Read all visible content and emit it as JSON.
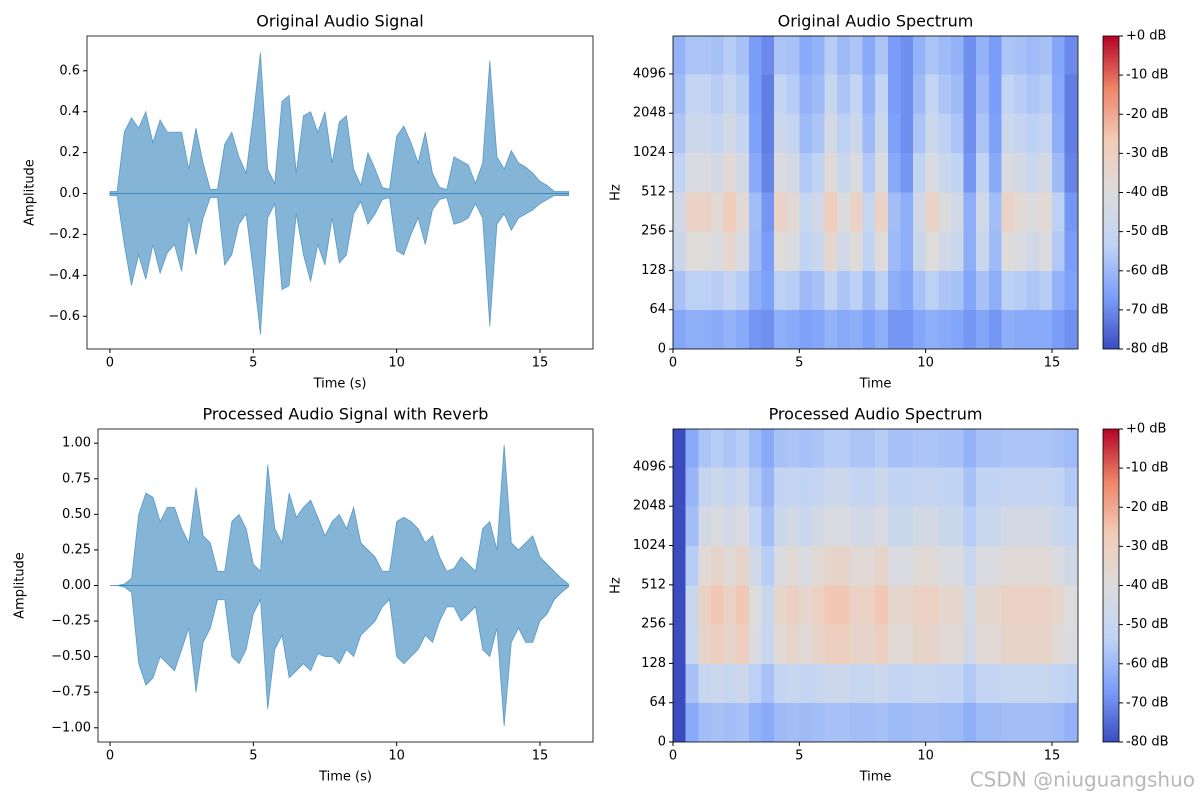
{
  "chart_data": [
    {
      "type": "area",
      "title": "Original Audio Signal",
      "xlabel": "Time (s)",
      "ylabel": "Amplitude",
      "color": "#1f77b4",
      "xlim": [
        -0.8,
        16.85
      ],
      "ylim": [
        -0.76,
        0.77
      ],
      "xticks": [
        0,
        5,
        10,
        15
      ],
      "yticks": [
        {
          "value": -0.6,
          "label": "−0.6"
        },
        {
          "value": -0.4,
          "label": "−0.4"
        },
        {
          "value": -0.2,
          "label": "−0.2"
        },
        {
          "value": 0,
          "label": "0.0"
        },
        0.2,
        0.4,
        0.6
      ],
      "x": [
        0,
        0.25,
        0.5,
        0.75,
        1,
        1.25,
        1.5,
        1.75,
        2,
        2.25,
        2.5,
        2.75,
        3,
        3.25,
        3.5,
        3.75,
        4,
        4.25,
        4.5,
        4.75,
        5,
        5.25,
        5.5,
        5.75,
        6,
        6.25,
        6.5,
        6.75,
        7,
        7.25,
        7.5,
        7.75,
        8,
        8.25,
        8.5,
        8.75,
        9,
        9.25,
        9.5,
        9.75,
        10,
        10.25,
        10.5,
        10.75,
        11,
        11.25,
        11.5,
        11.75,
        12,
        12.25,
        12.5,
        12.75,
        13,
        13.25,
        13.5,
        13.75,
        14,
        14.25,
        14.5,
        14.75,
        15,
        15.25,
        15.5,
        15.75,
        16
      ],
      "upper": [
        0.01,
        0.01,
        0.3,
        0.37,
        0.32,
        0.4,
        0.25,
        0.36,
        0.3,
        0.3,
        0.3,
        0.12,
        0.32,
        0.15,
        0.02,
        0.02,
        0.24,
        0.3,
        0.18,
        0.1,
        0.38,
        0.69,
        0.12,
        0.05,
        0.45,
        0.48,
        0.1,
        0.38,
        0.4,
        0.3,
        0.4,
        0.15,
        0.35,
        0.38,
        0.12,
        0.04,
        0.2,
        0.12,
        0.03,
        0.02,
        0.28,
        0.33,
        0.25,
        0.15,
        0.3,
        0.1,
        0.03,
        0.02,
        0.18,
        0.16,
        0.14,
        0.05,
        0.15,
        0.65,
        0.18,
        0.12,
        0.21,
        0.15,
        0.13,
        0.1,
        0.06,
        0.04,
        0.01,
        0.01,
        0.01
      ],
      "lower": [
        -0.01,
        -0.01,
        -0.25,
        -0.45,
        -0.3,
        -0.42,
        -0.25,
        -0.39,
        -0.29,
        -0.25,
        -0.38,
        -0.12,
        -0.3,
        -0.12,
        -0.02,
        -0.02,
        -0.35,
        -0.3,
        -0.15,
        -0.1,
        -0.38,
        -0.69,
        -0.12,
        -0.05,
        -0.47,
        -0.45,
        -0.1,
        -0.3,
        -0.43,
        -0.25,
        -0.35,
        -0.12,
        -0.34,
        -0.3,
        -0.1,
        -0.04,
        -0.15,
        -0.1,
        -0.03,
        -0.02,
        -0.28,
        -0.3,
        -0.2,
        -0.12,
        -0.25,
        -0.08,
        -0.03,
        -0.02,
        -0.15,
        -0.14,
        -0.12,
        -0.05,
        -0.12,
        -0.65,
        -0.15,
        -0.1,
        -0.18,
        -0.12,
        -0.1,
        -0.08,
        -0.05,
        -0.03,
        -0.01,
        -0.01,
        -0.01
      ]
    },
    {
      "type": "heatmap",
      "title": "Original Audio Spectrum",
      "xlabel": "Time",
      "ylabel": "Hz",
      "xlim": [
        0,
        16.03
      ],
      "ylim": [
        0,
        8000
      ],
      "yscale": "symlog",
      "linthresh": 64,
      "xticks": [
        0,
        5,
        10,
        15
      ],
      "yticks": [
        0,
        64,
        128,
        256,
        512,
        1024,
        2048,
        4096
      ],
      "x_edges": [
        0,
        0.5,
        1,
        1.5,
        2,
        2.5,
        3,
        3.5,
        4,
        4.5,
        5,
        5.5,
        6,
        6.5,
        7,
        7.5,
        8,
        8.5,
        9,
        9.5,
        10,
        10.5,
        11,
        11.5,
        12,
        12.5,
        13,
        13.5,
        14,
        14.5,
        15,
        15.5,
        16
      ],
      "y_edges": [
        0,
        64,
        128,
        256,
        512,
        1024,
        2048,
        4096,
        8000
      ],
      "clim": [
        -80,
        0
      ],
      "colorscale": [
        "#3b4cc0",
        "#7b9ff9",
        "#c0d4f5",
        "#dddcdc",
        "#f2cbb7",
        "#ee8468",
        "#b40426"
      ],
      "cticks": [
        {
          "value": 0,
          "label": "+0 dB"
        },
        {
          "value": -10,
          "label": "-10 dB"
        },
        {
          "value": -20,
          "label": "-20 dB"
        },
        {
          "value": -30,
          "label": "-30 dB"
        },
        {
          "value": -40,
          "label": "-40 dB"
        },
        {
          "value": -50,
          "label": "-50 dB"
        },
        {
          "value": -60,
          "label": "-60 dB"
        },
        {
          "value": -70,
          "label": "-70 dB"
        },
        {
          "value": -80,
          "label": "-80 dB"
        }
      ],
      "values": [
        [
          -65,
          -63,
          -63,
          -64,
          -62,
          -64,
          -68,
          -69,
          -63,
          -64,
          -66,
          -65,
          -62,
          -64,
          -63,
          -66,
          -63,
          -68,
          -68,
          -65,
          -63,
          -64,
          -65,
          -68,
          -65,
          -68,
          -63,
          -64,
          -64,
          -64,
          -67,
          -69
        ],
        [
          -58,
          -54,
          -54,
          -55,
          -52,
          -55,
          -63,
          -66,
          -54,
          -55,
          -60,
          -58,
          -52,
          -57,
          -54,
          -60,
          -54,
          -63,
          -65,
          -58,
          -54,
          -57,
          -58,
          -65,
          -58,
          -63,
          -54,
          -55,
          -57,
          -55,
          -62,
          -66
        ],
        [
          -49,
          -39,
          -39,
          -42,
          -35,
          -42,
          -60,
          -67,
          -39,
          -42,
          -53,
          -49,
          -35,
          -46,
          -39,
          -53,
          -39,
          -60,
          -63,
          -49,
          -39,
          -46,
          -49,
          -63,
          -49,
          -60,
          -39,
          -42,
          -46,
          -42,
          -56,
          -67
        ],
        [
          -46,
          -32,
          -32,
          -37,
          -28,
          -37,
          -59,
          -68,
          -32,
          -37,
          -50,
          -46,
          -28,
          -41,
          -32,
          -50,
          -32,
          -59,
          -63,
          -46,
          -32,
          -41,
          -46,
          -63,
          -46,
          -59,
          -32,
          -37,
          -41,
          -37,
          -54,
          -68
        ],
        [
          -53,
          -42,
          -42,
          -45,
          -38,
          -45,
          -64,
          -71,
          -42,
          -45,
          -56,
          -53,
          -38,
          -49,
          -42,
          -56,
          -42,
          -64,
          -68,
          -53,
          -42,
          -49,
          -53,
          -68,
          -53,
          -64,
          -42,
          -45,
          -49,
          -45,
          -60,
          -71
        ],
        [
          -57,
          -48,
          -48,
          -51,
          -45,
          -51,
          -66,
          -72,
          -48,
          -51,
          -60,
          -57,
          -45,
          -54,
          -48,
          -60,
          -48,
          -66,
          -69,
          -57,
          -48,
          -54,
          -57,
          -69,
          -57,
          -66,
          -48,
          -51,
          -54,
          -51,
          -63,
          -72
        ],
        [
          -60,
          -52,
          -52,
          -55,
          -50,
          -55,
          -67,
          -72,
          -52,
          -55,
          -62,
          -60,
          -50,
          -57,
          -52,
          -62,
          -52,
          -67,
          -69,
          -60,
          -52,
          -57,
          -60,
          -69,
          -60,
          -67,
          -52,
          -55,
          -57,
          -55,
          -64,
          -72
        ],
        [
          -62,
          -57,
          -57,
          -58,
          -55,
          -58,
          -67,
          -70,
          -57,
          -58,
          -64,
          -62,
          -55,
          -60,
          -57,
          -64,
          -57,
          -67,
          -69,
          -62,
          -57,
          -60,
          -62,
          -69,
          -62,
          -67,
          -57,
          -58,
          -60,
          -58,
          -65,
          -70
        ]
      ]
    },
    {
      "type": "area",
      "title": "Processed Audio Signal with Reverb",
      "xlabel": "Time (s)",
      "ylabel": "Amplitude",
      "color": "#1f77b4",
      "xlim": [
        -0.42,
        16.85
      ],
      "ylim": [
        -1.1,
        1.1
      ],
      "xticks": [
        0,
        5,
        10,
        15
      ],
      "yticks": [
        {
          "value": -1,
          "label": "−1.00"
        },
        {
          "value": -0.75,
          "label": "−0.75"
        },
        {
          "value": -0.5,
          "label": "−0.50"
        },
        {
          "value": -0.25,
          "label": "−0.25"
        },
        {
          "value": 0,
          "label": "0.00"
        },
        0.25,
        {
          "value": 0.5,
          "label": "0.50"
        },
        0.75,
        {
          "value": 1,
          "label": "1.00"
        }
      ],
      "x": [
        0,
        0.25,
        0.5,
        0.75,
        1,
        1.25,
        1.5,
        1.75,
        2,
        2.25,
        2.5,
        2.75,
        3,
        3.25,
        3.5,
        3.75,
        4,
        4.25,
        4.5,
        4.75,
        5,
        5.25,
        5.5,
        5.75,
        6,
        6.25,
        6.5,
        6.75,
        7,
        7.25,
        7.5,
        7.75,
        8,
        8.25,
        8.5,
        8.75,
        9,
        9.25,
        9.5,
        9.75,
        10,
        10.25,
        10.5,
        10.75,
        11,
        11.25,
        11.5,
        11.75,
        12,
        12.25,
        12.5,
        12.75,
        13,
        13.25,
        13.5,
        13.75,
        14,
        14.25,
        14.5,
        14.75,
        15,
        15.25,
        15.5,
        15.75,
        16
      ],
      "upper": [
        0,
        0,
        0.01,
        0.05,
        0.5,
        0.65,
        0.62,
        0.45,
        0.55,
        0.55,
        0.4,
        0.3,
        0.69,
        0.35,
        0.3,
        0.1,
        0.1,
        0.45,
        0.5,
        0.4,
        0.15,
        0.1,
        0.85,
        0.4,
        0.3,
        0.65,
        0.48,
        0.55,
        0.6,
        0.48,
        0.35,
        0.45,
        0.5,
        0.4,
        0.55,
        0.3,
        0.25,
        0.2,
        0.1,
        0.1,
        0.45,
        0.48,
        0.45,
        0.4,
        0.3,
        0.35,
        0.2,
        0.1,
        0.12,
        0.2,
        0.15,
        0.1,
        0.4,
        0.45,
        0.25,
        0.99,
        0.3,
        0.25,
        0.3,
        0.35,
        0.2,
        0.15,
        0.1,
        0.05,
        0.01
      ],
      "lower": [
        0,
        0,
        -0.01,
        -0.05,
        -0.55,
        -0.7,
        -0.65,
        -0.5,
        -0.55,
        -0.6,
        -0.45,
        -0.3,
        -0.75,
        -0.4,
        -0.3,
        -0.1,
        -0.1,
        -0.5,
        -0.55,
        -0.45,
        -0.2,
        -0.1,
        -0.87,
        -0.45,
        -0.35,
        -0.65,
        -0.6,
        -0.55,
        -0.6,
        -0.48,
        -0.5,
        -0.5,
        -0.55,
        -0.45,
        -0.5,
        -0.35,
        -0.3,
        -0.25,
        -0.15,
        -0.1,
        -0.5,
        -0.55,
        -0.5,
        -0.45,
        -0.35,
        -0.4,
        -0.25,
        -0.15,
        -0.15,
        -0.25,
        -0.2,
        -0.15,
        -0.45,
        -0.5,
        -0.3,
        -0.99,
        -0.4,
        -0.3,
        -0.4,
        -0.4,
        -0.25,
        -0.2,
        -0.1,
        -0.05,
        -0.01
      ]
    },
    {
      "type": "heatmap",
      "title": "Processed Audio Spectrum",
      "xlabel": "Time",
      "ylabel": "Hz",
      "xlim": [
        0,
        16.03
      ],
      "ylim": [
        0,
        8000
      ],
      "yscale": "symlog",
      "linthresh": 64,
      "xticks": [
        0,
        5,
        10,
        15
      ],
      "yticks": [
        0,
        64,
        128,
        256,
        512,
        1024,
        2048,
        4096
      ],
      "x_edges": [
        0,
        0.5,
        1,
        1.5,
        2,
        2.5,
        3,
        3.5,
        4,
        4.5,
        5,
        5.5,
        6,
        6.5,
        7,
        7.5,
        8,
        8.5,
        9,
        9.5,
        10,
        10.5,
        11,
        11.5,
        12,
        12.5,
        13,
        13.5,
        14,
        14.5,
        15,
        15.5,
        16
      ],
      "y_edges": [
        0,
        64,
        128,
        256,
        512,
        1024,
        2048,
        4096,
        8000
      ],
      "clim": [
        -80,
        0
      ],
      "colorscale": [
        "#3b4cc0",
        "#7b9ff9",
        "#c0d4f5",
        "#dddcdc",
        "#f2cbb7",
        "#ee8468",
        "#b40426"
      ],
      "cticks": [
        {
          "value": 0,
          "label": "+0 dB"
        },
        {
          "value": -10,
          "label": "-10 dB"
        },
        {
          "value": -20,
          "label": "-20 dB"
        },
        {
          "value": -30,
          "label": "-30 dB"
        },
        {
          "value": -40,
          "label": "-40 dB"
        },
        {
          "value": -50,
          "label": "-50 dB"
        },
        {
          "value": -60,
          "label": "-60 dB"
        },
        {
          "value": -70,
          "label": "-70 dB"
        },
        {
          "value": -80,
          "label": "-80 dB"
        }
      ],
      "values": [
        [
          -80,
          -64,
          -59,
          -58,
          -59,
          -58,
          -62,
          -64,
          -60,
          -59,
          -60,
          -59,
          -58,
          -58,
          -59,
          -59,
          -58,
          -60,
          -60,
          -59,
          -59,
          -60,
          -60,
          -63,
          -60,
          -60,
          -59,
          -59,
          -59,
          -59,
          -60,
          -62
        ],
        [
          -80,
          -58,
          -50,
          -48,
          -50,
          -48,
          -54,
          -58,
          -52,
          -50,
          -52,
          -50,
          -48,
          -48,
          -50,
          -50,
          -48,
          -52,
          -52,
          -50,
          -50,
          -52,
          -52,
          -56,
          -52,
          -52,
          -50,
          -50,
          -50,
          -50,
          -52,
          -54
        ],
        [
          -80,
          -50,
          -34,
          -30,
          -34,
          -30,
          -42,
          -50,
          -38,
          -34,
          -38,
          -34,
          -30,
          -30,
          -34,
          -34,
          -30,
          -38,
          -38,
          -34,
          -34,
          -38,
          -38,
          -46,
          -38,
          -38,
          -34,
          -34,
          -34,
          -34,
          -38,
          -42
        ],
        [
          -80,
          -49,
          -31,
          -26,
          -31,
          -26,
          -40,
          -49,
          -35,
          -31,
          -35,
          -31,
          -26,
          -26,
          -31,
          -31,
          -26,
          -35,
          -35,
          -31,
          -31,
          -35,
          -35,
          -44,
          -35,
          -35,
          -31,
          -31,
          -31,
          -31,
          -35,
          -40
        ],
        [
          -80,
          -55,
          -38,
          -34,
          -38,
          -34,
          -46,
          -55,
          -42,
          -38,
          -42,
          -38,
          -34,
          -34,
          -38,
          -38,
          -34,
          -42,
          -42,
          -38,
          -38,
          -42,
          -42,
          -50,
          -42,
          -42,
          -38,
          -38,
          -38,
          -38,
          -42,
          -46
        ],
        [
          -80,
          -59,
          -45,
          -42,
          -45,
          -42,
          -52,
          -59,
          -49,
          -45,
          -49,
          -45,
          -42,
          -42,
          -45,
          -45,
          -42,
          -49,
          -49,
          -45,
          -45,
          -49,
          -49,
          -55,
          -49,
          -49,
          -45,
          -45,
          -45,
          -45,
          -49,
          -52
        ],
        [
          -80,
          -61,
          -51,
          -48,
          -51,
          -48,
          -56,
          -61,
          -53,
          -51,
          -53,
          -51,
          -48,
          -48,
          -51,
          -51,
          -48,
          -53,
          -53,
          -51,
          -51,
          -53,
          -53,
          -58,
          -53,
          -53,
          -51,
          -51,
          -51,
          -51,
          -53,
          -56
        ],
        [
          -80,
          -64,
          -57,
          -55,
          -57,
          -55,
          -60,
          -64,
          -58,
          -57,
          -58,
          -57,
          -55,
          -55,
          -57,
          -57,
          -55,
          -58,
          -58,
          -57,
          -57,
          -58,
          -58,
          -62,
          -58,
          -58,
          -57,
          -57,
          -57,
          -57,
          -58,
          -60
        ]
      ]
    }
  ],
  "watermark": "CSDN @niuguangshuo"
}
